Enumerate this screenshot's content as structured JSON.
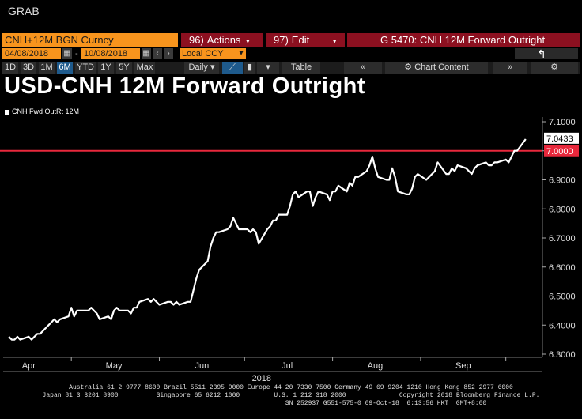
{
  "window": {
    "title": "GRAB"
  },
  "toolbar": {
    "security": "CNH+12M BGN Curncy",
    "actions": {
      "num": "96)",
      "label": "Actions"
    },
    "edit": {
      "num": "97)",
      "label": "Edit"
    },
    "function_title": "G 5470: CNH 12M Forward Outright",
    "start_date": "04/08/2018",
    "end_date": "10/08/2018",
    "currency": "Local CCY",
    "periods": [
      "1D",
      "3D",
      "1M",
      "6M",
      "YTD",
      "1Y",
      "5Y",
      "Max"
    ],
    "active_period": "6M",
    "frequency": "Daily",
    "table_label": "Table",
    "chart_content_label": "Chart Content"
  },
  "chart_data": {
    "type": "line",
    "title": "USD-CNH 12M Forward Outright",
    "legend": [
      "CNH Fwd OutRt 12M"
    ],
    "year_label": "2018",
    "x_tick_labels": [
      "Apr",
      "May",
      "Jun",
      "Jul",
      "Aug",
      "Sep"
    ],
    "y_tick_labels": [
      "6.3000",
      "6.4000",
      "6.5000",
      "6.6000",
      "6.7000",
      "6.8000",
      "6.9000",
      "7.0000",
      "7.1000"
    ],
    "ylim": [
      6.3,
      7.1
    ],
    "grid": false,
    "reference_line": {
      "value": 7.0,
      "label": "7.0000",
      "color": "#e8283c"
    },
    "last_value_label": "7.0433",
    "series": [
      {
        "name": "CNH Fwd OutRt 12M",
        "color": "#ffffff",
        "x": [
          "2018-04-09",
          "2018-04-10",
          "2018-04-11",
          "2018-04-12",
          "2018-04-13",
          "2018-04-16",
          "2018-04-17",
          "2018-04-18",
          "2018-04-19",
          "2018-04-20",
          "2018-04-23",
          "2018-04-24",
          "2018-04-25",
          "2018-04-26",
          "2018-04-27",
          "2018-04-30",
          "2018-05-01",
          "2018-05-02",
          "2018-05-03",
          "2018-05-04",
          "2018-05-07",
          "2018-05-08",
          "2018-05-09",
          "2018-05-10",
          "2018-05-11",
          "2018-05-14",
          "2018-05-15",
          "2018-05-16",
          "2018-05-17",
          "2018-05-18",
          "2018-05-21",
          "2018-05-22",
          "2018-05-23",
          "2018-05-24",
          "2018-05-25",
          "2018-05-28",
          "2018-05-29",
          "2018-05-30",
          "2018-05-31",
          "2018-06-01",
          "2018-06-04",
          "2018-06-05",
          "2018-06-06",
          "2018-06-07",
          "2018-06-08",
          "2018-06-11",
          "2018-06-12",
          "2018-06-13",
          "2018-06-14",
          "2018-06-15",
          "2018-06-18",
          "2018-06-19",
          "2018-06-20",
          "2018-06-21",
          "2018-06-22",
          "2018-06-25",
          "2018-06-26",
          "2018-06-27",
          "2018-06-28",
          "2018-06-29",
          "2018-07-02",
          "2018-07-03",
          "2018-07-04",
          "2018-07-05",
          "2018-07-06",
          "2018-07-09",
          "2018-07-10",
          "2018-07-11",
          "2018-07-12",
          "2018-07-13",
          "2018-07-16",
          "2018-07-17",
          "2018-07-18",
          "2018-07-19",
          "2018-07-20",
          "2018-07-23",
          "2018-07-24",
          "2018-07-25",
          "2018-07-26",
          "2018-07-27",
          "2018-07-30",
          "2018-07-31",
          "2018-08-01",
          "2018-08-02",
          "2018-08-03",
          "2018-08-06",
          "2018-08-07",
          "2018-08-08",
          "2018-08-09",
          "2018-08-10",
          "2018-08-13",
          "2018-08-14",
          "2018-08-15",
          "2018-08-16",
          "2018-08-17",
          "2018-08-20",
          "2018-08-21",
          "2018-08-22",
          "2018-08-23",
          "2018-08-24",
          "2018-08-27",
          "2018-08-28",
          "2018-08-29",
          "2018-08-30",
          "2018-08-31",
          "2018-09-03",
          "2018-09-04",
          "2018-09-05",
          "2018-09-06",
          "2018-09-07",
          "2018-09-10",
          "2018-09-11",
          "2018-09-12",
          "2018-09-13",
          "2018-09-14",
          "2018-09-17",
          "2018-09-18",
          "2018-09-19",
          "2018-09-20",
          "2018-09-21",
          "2018-09-24",
          "2018-09-25",
          "2018-09-26",
          "2018-09-27",
          "2018-09-28",
          "2018-10-01",
          "2018-10-02",
          "2018-10-03",
          "2018-10-04",
          "2018-10-05",
          "2018-10-08"
        ],
        "values": [
          6.36,
          6.35,
          6.35,
          6.36,
          6.35,
          6.36,
          6.35,
          6.36,
          6.37,
          6.37,
          6.4,
          6.41,
          6.42,
          6.41,
          6.42,
          6.43,
          6.46,
          6.43,
          6.45,
          6.45,
          6.45,
          6.46,
          6.45,
          6.44,
          6.42,
          6.43,
          6.42,
          6.45,
          6.46,
          6.45,
          6.45,
          6.44,
          6.46,
          6.46,
          6.48,
          6.49,
          6.48,
          6.49,
          6.48,
          6.47,
          6.48,
          6.48,
          6.47,
          6.48,
          6.47,
          6.48,
          6.48,
          6.52,
          6.56,
          6.59,
          6.62,
          6.67,
          6.7,
          6.72,
          6.72,
          6.73,
          6.74,
          6.77,
          6.75,
          6.73,
          6.73,
          6.72,
          6.73,
          6.72,
          6.68,
          6.73,
          6.74,
          6.76,
          6.76,
          6.78,
          6.78,
          6.81,
          6.85,
          6.86,
          6.84,
          6.86,
          6.86,
          6.81,
          6.84,
          6.86,
          6.85,
          6.83,
          6.86,
          6.86,
          6.88,
          6.86,
          6.89,
          6.88,
          6.91,
          6.91,
          6.93,
          6.95,
          6.98,
          6.94,
          6.91,
          6.9,
          6.9,
          6.94,
          6.91,
          6.86,
          6.85,
          6.85,
          6.87,
          6.91,
          6.92,
          6.9,
          6.91,
          6.92,
          6.93,
          6.96,
          6.92,
          6.92,
          6.94,
          6.93,
          6.95,
          6.94,
          6.93,
          6.92,
          6.94,
          6.95,
          6.96,
          6.95,
          6.95,
          6.96,
          6.96,
          6.97,
          6.96,
          6.98,
          7.0,
          7.0,
          7.04
        ]
      }
    ]
  },
  "footer": {
    "line1": "Australia 61 2 9777 8600 Brazil 5511 2395 9000 Europe 44 20 7330 7500 Germany 49 69 9204 1210 Hong Kong 852 2977 6000",
    "line2": "Japan 81 3 3201 8900          Singapore 65 6212 1000         U.S. 1 212 318 2000              Copyright 2018 Bloomberg Finance L.P.",
    "line3": "SN 252937 G551-575-0 09-Oct-18  6:13:56 HKT  GMT+8:00"
  }
}
